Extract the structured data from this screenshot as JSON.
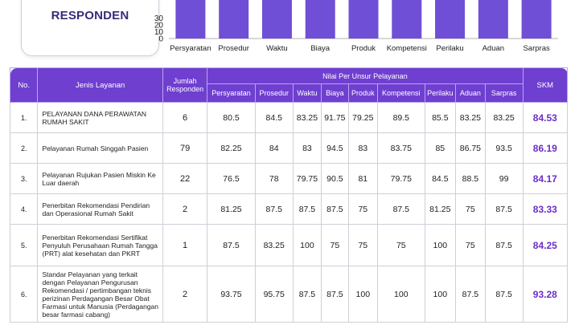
{
  "respondent_card": {
    "label": "RESPONDEN"
  },
  "chart_data": {
    "type": "bar",
    "categories": [
      "Persyaratan",
      "Prosedur",
      "Waktu",
      "Biaya",
      "Produk",
      "Kompetensi",
      "Perilaku",
      "Aduan",
      "Sarpras"
    ],
    "values": [
      70,
      70,
      70,
      70,
      70,
      70,
      70,
      70,
      70
    ],
    "ytick_labels": [
      "0",
      "10",
      "20",
      "30"
    ],
    "ylim": [
      0,
      30
    ],
    "bar_color": "#6f4fd6",
    "title": "",
    "xlabel": "",
    "ylabel": ""
  },
  "table": {
    "headers": {
      "no": "No.",
      "service": "Jenis Layanan",
      "respondents": "Jumlah Responden",
      "group": "Nilai Per Unsur Pelayanan",
      "skm": "SKM",
      "units": [
        "Persyaratan",
        "Prosedur",
        "Waktu",
        "Biaya",
        "Produk",
        "Kompetensi",
        "Perilaku",
        "Aduan",
        "Sarpras"
      ]
    },
    "rows": [
      {
        "no": "1.",
        "service": "PELAYANAN DANA PERAWATAN RUMAH SAKIT",
        "respondents": "6",
        "values": [
          "80.5",
          "84.5",
          "83.25",
          "91.75",
          "79.25",
          "89.5",
          "85.5",
          "83.25",
          "83.25"
        ],
        "skm": "84.53"
      },
      {
        "no": "2.",
        "service": "Pelayanan Rumah Singgah Pasien",
        "respondents": "79",
        "values": [
          "82.25",
          "84",
          "83",
          "94.5",
          "83",
          "83.75",
          "85",
          "86.75",
          "93.5"
        ],
        "skm": "86.19"
      },
      {
        "no": "3.",
        "service": "Pelayanan Rujukan Pasien Miskin Ke Luar daerah",
        "respondents": "22",
        "values": [
          "76.5",
          "78",
          "79.75",
          "90.5",
          "81",
          "79.75",
          "84.5",
          "88.5",
          "99"
        ],
        "skm": "84.17"
      },
      {
        "no": "4.",
        "service": "Penerbitan Rekomendasi Pendirian dan Operasional Rumah Sakit",
        "respondents": "2",
        "values": [
          "81.25",
          "87.5",
          "87.5",
          "87.5",
          "75",
          "87.5",
          "81.25",
          "75",
          "87.5"
        ],
        "skm": "83.33"
      },
      {
        "no": "5.",
        "service": "Penerbitan Rekomendasi Sertifikat Penyuluh Perusahaan Rumah Tangga (PRT) alat kesehatan dan PKRT",
        "respondents": "1",
        "values": [
          "87.5",
          "83.25",
          "100",
          "75",
          "75",
          "75",
          "100",
          "75",
          "87.5"
        ],
        "skm": "84.25"
      },
      {
        "no": "6.",
        "service": "Standar Pelayanan yang terkait dengan Pelayanan Pengurusan Rekomendasi / pertimbangan teknis perizinan Perdagangan Besar Obat Farmasi untuk Manusia (Perdagangan besar farmasi cabang)",
        "respondents": "2",
        "values": [
          "93.75",
          "95.75",
          "87.5",
          "87.5",
          "100",
          "100",
          "100",
          "87.5",
          "87.5"
        ],
        "skm": "93.28"
      }
    ]
  }
}
